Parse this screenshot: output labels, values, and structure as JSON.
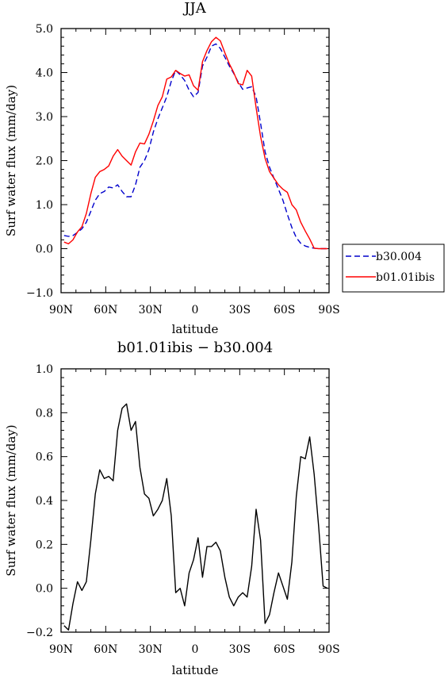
{
  "chart_data": [
    {
      "type": "line",
      "title": "JJA",
      "xlabel": "latitude",
      "ylabel": "Surf water flux (mm/day)",
      "xlim": [
        -90,
        90
      ],
      "ylim": [
        -1.0,
        5.0
      ],
      "x_ticks": [
        -90,
        -60,
        -30,
        0,
        30,
        60,
        90
      ],
      "x_tick_labels": [
        "90N",
        "60N",
        "30N",
        "0",
        "30S",
        "60S",
        "90S"
      ],
      "y_ticks": [
        -1,
        0,
        1,
        2,
        3,
        4,
        5
      ],
      "y_tick_labels": [
        "−1.0",
        "0.0",
        "1.0",
        "2.0",
        "3.0",
        "4.0",
        "5.0"
      ],
      "legend_position": "outside-right",
      "series": [
        {
          "name": "b30.004",
          "color": "#0000cc",
          "dash": "dashed",
          "x": [
            -88,
            -85,
            -82,
            -79,
            -76,
            -73,
            -70,
            -67,
            -64,
            -61,
            -58,
            -55,
            -52,
            -49,
            -46,
            -43,
            -40,
            -37,
            -34,
            -31,
            -28,
            -25,
            -22,
            -19,
            -16,
            -13,
            -10,
            -7,
            -4,
            -1,
            2,
            5,
            8,
            11,
            14,
            17,
            20,
            23,
            26,
            29,
            32,
            35,
            38,
            41,
            44,
            47,
            50,
            53,
            56,
            59,
            62,
            65,
            68,
            71,
            74,
            77,
            80,
            83,
            86,
            89
          ],
          "y": [
            0.3,
            0.28,
            0.3,
            0.37,
            0.45,
            0.6,
            0.85,
            1.1,
            1.25,
            1.3,
            1.4,
            1.38,
            1.45,
            1.3,
            1.18,
            1.18,
            1.45,
            1.85,
            2.0,
            2.25,
            2.65,
            2.95,
            3.2,
            3.45,
            3.8,
            4.05,
            3.95,
            3.82,
            3.6,
            3.45,
            3.55,
            4.15,
            4.35,
            4.6,
            4.65,
            4.55,
            4.35,
            4.15,
            3.98,
            3.78,
            3.62,
            3.65,
            3.68,
            3.45,
            2.85,
            2.2,
            1.85,
            1.6,
            1.35,
            1.1,
            0.78,
            0.48,
            0.25,
            0.12,
            0.06,
            0.03,
            0.01,
            0.0,
            0.0,
            0.0
          ]
        },
        {
          "name": "b01.01ibis",
          "color": "#ff0000",
          "dash": "solid",
          "x": [
            -88,
            -85,
            -82,
            -79,
            -76,
            -73,
            -70,
            -67,
            -64,
            -61,
            -58,
            -55,
            -52,
            -49,
            -46,
            -43,
            -40,
            -37,
            -34,
            -31,
            -28,
            -25,
            -22,
            -19,
            -16,
            -13,
            -10,
            -7,
            -4,
            -1,
            2,
            5,
            8,
            11,
            14,
            17,
            20,
            23,
            26,
            29,
            32,
            35,
            38,
            41,
            44,
            47,
            50,
            53,
            56,
            59,
            62,
            65,
            68,
            71,
            74,
            77,
            80,
            83,
            86,
            89
          ],
          "y": [
            0.15,
            0.11,
            0.2,
            0.38,
            0.5,
            0.8,
            1.25,
            1.62,
            1.75,
            1.8,
            1.88,
            2.1,
            2.25,
            2.1,
            2.0,
            1.9,
            2.2,
            2.4,
            2.38,
            2.6,
            2.9,
            3.25,
            3.45,
            3.85,
            3.9,
            4.05,
            3.98,
            3.92,
            3.95,
            3.7,
            3.6,
            4.25,
            4.5,
            4.7,
            4.8,
            4.72,
            4.45,
            4.2,
            4.0,
            3.75,
            3.72,
            4.05,
            3.92,
            3.2,
            2.55,
            2.05,
            1.75,
            1.6,
            1.45,
            1.35,
            1.28,
            1.0,
            0.88,
            0.6,
            0.4,
            0.22,
            0.01,
            0.0,
            0.0,
            0.0
          ]
        }
      ]
    },
    {
      "type": "line",
      "title": "b01.01ibis − b30.004",
      "xlabel": "latitude",
      "ylabel": "Surf water flux (mm/day)",
      "xlim": [
        -90,
        90
      ],
      "ylim": [
        -0.2,
        1.0
      ],
      "x_ticks": [
        -90,
        -60,
        -30,
        0,
        30,
        60,
        90
      ],
      "x_tick_labels": [
        "90N",
        "60N",
        "30N",
        "0",
        "30S",
        "60S",
        "90S"
      ],
      "y_ticks": [
        -0.2,
        0,
        0.2,
        0.4,
        0.6,
        0.8,
        1.0
      ],
      "y_tick_labels": [
        "−0.2",
        "0.0",
        "0.2",
        "0.4",
        "0.6",
        "0.8",
        "1.0"
      ],
      "series": [
        {
          "color": "#000000",
          "dash": "solid",
          "x": [
            -88,
            -85,
            -82,
            -79,
            -76,
            -73,
            -70,
            -67,
            -64,
            -61,
            -58,
            -55,
            -52,
            -49,
            -46,
            -43,
            -40,
            -37,
            -34,
            -31,
            -28,
            -25,
            -22,
            -19,
            -16,
            -13,
            -10,
            -7,
            -4,
            -1,
            2,
            5,
            8,
            11,
            14,
            17,
            20,
            23,
            26,
            29,
            32,
            35,
            38,
            41,
            44,
            47,
            50,
            53,
            56,
            59,
            62,
            65,
            68,
            71,
            74,
            77,
            80,
            83,
            86,
            89
          ],
          "y": [
            -0.17,
            -0.19,
            -0.07,
            0.03,
            -0.01,
            0.03,
            0.22,
            0.43,
            0.54,
            0.5,
            0.51,
            0.49,
            0.72,
            0.82,
            0.84,
            0.72,
            0.76,
            0.55,
            0.43,
            0.41,
            0.33,
            0.36,
            0.4,
            0.5,
            0.33,
            -0.02,
            0.0,
            -0.08,
            0.07,
            0.13,
            0.23,
            0.05,
            0.19,
            0.19,
            0.21,
            0.17,
            0.05,
            -0.04,
            -0.08,
            -0.04,
            -0.02,
            -0.04,
            0.1,
            0.36,
            0.22,
            -0.16,
            -0.12,
            -0.02,
            0.07,
            0.01,
            -0.05,
            0.12,
            0.42,
            0.6,
            0.59,
            0.69,
            0.52,
            0.28,
            0.01,
            0.0
          ]
        }
      ]
    }
  ]
}
